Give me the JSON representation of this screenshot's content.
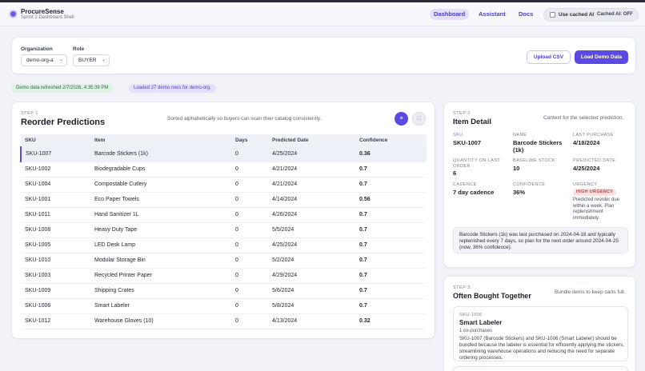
{
  "app": {
    "name": "ProcureSense",
    "subtitle": "Sprint 2 Dashboard Shell"
  },
  "nav": {
    "dashboard": "Dashboard",
    "assistant": "Assistant",
    "docs": "Docs",
    "active": "Dashboard"
  },
  "cached_ai": {
    "label": "Use cached AI",
    "status": "Cached AI: OFF",
    "checked": false
  },
  "controls": {
    "organization_label": "Organization",
    "organization_value": "demo-org-a",
    "role_label": "Role",
    "role_value": "BUYER",
    "upload_label": "Upload CSV",
    "load_label": "Load Demo Data"
  },
  "badges": {
    "refreshed": "Demo data refreshed 2/7/2026, 4:35:39 PM",
    "loaded": "Loaded 27 demo rows for demo-org."
  },
  "predictions": {
    "step": "STEP 1",
    "title": "Reorder Predictions",
    "subtitle": "Sorted alphabetically so buyers can scan their catalog consistently.",
    "columns": [
      "SKU",
      "Item",
      "Days",
      "Predicted Date",
      "Confidence"
    ],
    "rows": [
      {
        "sku": "SKU-1007",
        "item": "Barcode Stickers (1k)",
        "days": "0",
        "date": "4/25/2024",
        "confidence": "0.36"
      },
      {
        "sku": "SKU-1002",
        "item": "Biodegradable Cups",
        "days": "0",
        "date": "4/21/2024",
        "confidence": "0.7"
      },
      {
        "sku": "SKU-1004",
        "item": "Compostable Cutlery",
        "days": "0",
        "date": "4/21/2024",
        "confidence": "0.7"
      },
      {
        "sku": "SKU-1001",
        "item": "Eco Paper Towels",
        "days": "0",
        "date": "4/14/2024",
        "confidence": "0.56"
      },
      {
        "sku": "SKU-1011",
        "item": "Hand Sanitizer 1L",
        "days": "0",
        "date": "4/26/2024",
        "confidence": "0.7"
      },
      {
        "sku": "SKU-1008",
        "item": "Heavy Duty Tape",
        "days": "0",
        "date": "5/5/2024",
        "confidence": "0.7"
      },
      {
        "sku": "SKU-1005",
        "item": "LED Desk Lamp",
        "days": "0",
        "date": "4/25/2024",
        "confidence": "0.7"
      },
      {
        "sku": "SKU-1010",
        "item": "Modular Storage Bin",
        "days": "0",
        "date": "5/2/2024",
        "confidence": "0.7"
      },
      {
        "sku": "SKU-1003",
        "item": "Recycled Printer Paper",
        "days": "0",
        "date": "4/29/2024",
        "confidence": "0.7"
      },
      {
        "sku": "SKU-1009",
        "item": "Shipping Crates",
        "days": "0",
        "date": "5/6/2024",
        "confidence": "0.7"
      },
      {
        "sku": "SKU-1006",
        "item": "Smart Labeler",
        "days": "0",
        "date": "5/8/2024",
        "confidence": "0.7"
      },
      {
        "sku": "SKU-1012",
        "item": "Warehouse Gloves (10)",
        "days": "0",
        "date": "4/13/2024",
        "confidence": "0.32"
      }
    ],
    "selected_sku": "SKU-1007"
  },
  "detail": {
    "step": "STEP 2",
    "title": "Item Detail",
    "context": "Context for the selected prediction.",
    "sku_label": "SKU",
    "sku": "SKU-1007",
    "name_label": "NAME",
    "name": "Barcode Stickers (1k)",
    "last_purchase_label": "LAST PURCHASE",
    "last_purchase": "4/18/2024",
    "qty_label": "QUANTITY ON LAST ORDER",
    "qty": "6",
    "baseline_label": "BASELINE STOCK",
    "baseline": "10",
    "predicted_label": "PREDICTED DATE",
    "predicted": "4/25/2024",
    "cadence_label": "CADENCE",
    "cadence": "7 day cadence",
    "confidence_label": "CONFIDENCE",
    "confidence": "36%",
    "urgency_label": "URGENCY",
    "urgency_badge": "HIGH URGENCY",
    "urgency_note": "Predicted reorder due within a week. Plan replenishment immediately.",
    "summary": "Barcode Stickers (1k) was last purchased on 2024-04-18 and typically replenished every 7 days, so plan for the next order around 2024-04-25 (now, 36% confidence)."
  },
  "bundles": {
    "step": "STEP 3",
    "title": "Often Bought Together",
    "subtitle": "Bundle items to keep carts full.",
    "items": [
      {
        "sku": "SKU-1006",
        "name": "Smart Labeler",
        "count": "1 co-purchases",
        "text": "SKU-1007 (Barcode Stickers) and SKU-1006 (Smart Labeler) should be bundled because the labeler is essential for efficiently applying the stickers, streamlining warehouse operations and reducing the need for separate ordering processes."
      }
    ]
  },
  "colors": {
    "accent": "#5a4ae3",
    "accent_light": "#e4e0fb",
    "success_bg": "#dff2e4",
    "urgency_bg": "#fde2e2",
    "urgency_text": "#c23a3a"
  },
  "icons": {
    "list_view": "list-icon",
    "grid_view": "grid-icon"
  }
}
